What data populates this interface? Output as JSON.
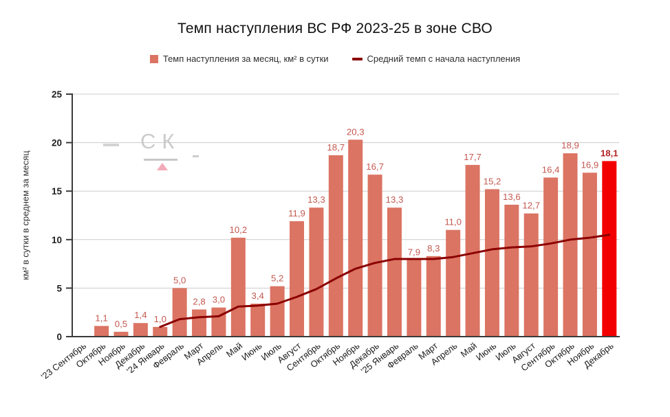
{
  "title": "Темп наступления ВС РФ 2023-25 в зоне СВО",
  "legend": {
    "bars_label": "Темп наступления за месяц, км² в сутки",
    "line_label": "Средний темп с начала наступления"
  },
  "watermark": {
    "text": "СК"
  },
  "chart_data": {
    "type": "bar",
    "title": "Темп наступления ВС РФ 2023-25 в зоне СВО",
    "xlabel": "",
    "ylabel": "км² в сутки в среднем за месяц",
    "ylim": [
      0,
      25
    ],
    "yticks": [
      0,
      5,
      10,
      15,
      20,
      25
    ],
    "grid": true,
    "legend_position": "top",
    "categories": [
      "'23 Сентябрь",
      "Октябрь",
      "Ноябрь",
      "Декабрь",
      "'24 Январь",
      "Февраль",
      "Март",
      "Апрель",
      "Май",
      "Июнь",
      "Июль",
      "Август",
      "Сентябрь",
      "Октябрь",
      "Ноябрь",
      "Декабрь",
      "'25 Январь",
      "Февраль",
      "Март",
      "Апрель",
      "Май",
      "Июнь",
      "Июль",
      "Август",
      "Сентябрь",
      "Октябрь",
      "Ноябрь",
      "Декабрь"
    ],
    "series": [
      {
        "name": "Темп наступления за месяц, км² в сутки",
        "type": "bar",
        "values": [
          0,
          1.1,
          0.5,
          1.4,
          1.0,
          5.0,
          2.8,
          3.0,
          10.2,
          3.4,
          5.2,
          11.9,
          13.3,
          18.7,
          20.3,
          16.7,
          13.3,
          7.9,
          8.3,
          11.0,
          17.7,
          15.2,
          13.6,
          12.7,
          16.4,
          18.9,
          16.9,
          18.1
        ],
        "labels": [
          "",
          "1,1",
          "0,5",
          "1,4",
          "1,0",
          "5,0",
          "2,8",
          "3,0",
          "10,2",
          "3,4",
          "5,2",
          "11,9",
          "13,3",
          "18,7",
          "20,3",
          "16,7",
          "13,3",
          "7,9",
          "8,3",
          "11,0",
          "17,7",
          "15,2",
          "13,6",
          "12,7",
          "16,4",
          "18,9",
          "16,9",
          "18,1"
        ],
        "color": "#db7463",
        "highlight_index": 27,
        "highlight_color": "#f20000"
      },
      {
        "name": "Средний темп с начала наступления",
        "type": "line",
        "start_index": 4,
        "values": [
          1.0,
          1.8,
          2.0,
          2.1,
          3.1,
          3.2,
          3.4,
          4.1,
          4.9,
          6.0,
          7.0,
          7.6,
          8.0,
          8.0,
          8.0,
          8.2,
          8.6,
          9.0,
          9.2,
          9.3,
          9.6,
          10.0,
          10.2,
          10.5
        ],
        "color": "#8b0000"
      }
    ],
    "value_label_color": "#c3584f",
    "highlight_value_label_color": "#b22222",
    "axis_color": "#3a3a3a",
    "grid_color": "#cccccc",
    "tick_label_color": "#1f1f1f",
    "category_label_color": "#1a1a1a"
  }
}
